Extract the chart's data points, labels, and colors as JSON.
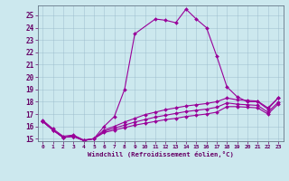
{
  "xlabel": "Windchill (Refroidissement éolien,°C)",
  "bg_color": "#cce8ee",
  "line_color": "#990099",
  "grid_color": "#99bbcc",
  "xlim": [
    -0.5,
    23.5
  ],
  "ylim": [
    14.8,
    25.8
  ],
  "yticks": [
    15,
    16,
    17,
    18,
    19,
    20,
    21,
    22,
    23,
    24,
    25
  ],
  "xticks": [
    0,
    1,
    2,
    3,
    4,
    5,
    6,
    7,
    8,
    9,
    10,
    11,
    12,
    13,
    14,
    15,
    16,
    17,
    18,
    19,
    20,
    21,
    22,
    23
  ],
  "curves": [
    {
      "x": [
        0,
        1,
        2,
        3,
        4,
        5,
        6,
        7,
        8,
        9,
        11,
        12,
        13,
        14,
        15,
        16,
        17,
        18,
        19,
        20,
        21,
        22,
        23
      ],
      "y": [
        16.5,
        15.8,
        15.2,
        15.3,
        14.9,
        15.0,
        16.0,
        16.8,
        19.0,
        23.5,
        24.7,
        24.6,
        24.4,
        25.5,
        24.7,
        24.0,
        21.7,
        19.2,
        18.4,
        18.0,
        18.0,
        17.4,
        18.3
      ]
    },
    {
      "x": [
        0,
        1,
        2,
        3,
        4,
        5,
        6,
        7,
        8,
        9,
        10,
        11,
        12,
        13,
        14,
        15,
        16,
        17,
        18,
        19,
        20,
        21,
        22,
        23
      ],
      "y": [
        16.4,
        15.7,
        15.1,
        15.2,
        14.85,
        15.0,
        15.5,
        15.7,
        15.9,
        16.1,
        16.25,
        16.4,
        16.55,
        16.65,
        16.8,
        16.9,
        17.0,
        17.15,
        17.6,
        17.6,
        17.55,
        17.5,
        17.0,
        17.8
      ]
    },
    {
      "x": [
        0,
        1,
        2,
        3,
        4,
        5,
        6,
        7,
        8,
        9,
        10,
        11,
        12,
        13,
        14,
        15,
        16,
        17,
        18,
        19,
        20,
        21,
        22,
        23
      ],
      "y": [
        16.4,
        15.7,
        15.1,
        15.2,
        14.85,
        15.0,
        15.6,
        15.85,
        16.1,
        16.35,
        16.55,
        16.75,
        16.9,
        17.05,
        17.2,
        17.3,
        17.4,
        17.55,
        17.9,
        17.8,
        17.75,
        17.7,
        17.15,
        17.95
      ]
    },
    {
      "x": [
        0,
        1,
        2,
        3,
        4,
        5,
        6,
        7,
        8,
        9,
        10,
        11,
        12,
        13,
        14,
        15,
        16,
        17,
        18,
        19,
        20,
        21,
        22,
        23
      ],
      "y": [
        16.4,
        15.7,
        15.1,
        15.2,
        14.85,
        15.0,
        15.7,
        16.0,
        16.35,
        16.65,
        16.95,
        17.15,
        17.35,
        17.5,
        17.65,
        17.75,
        17.85,
        18.0,
        18.3,
        18.15,
        18.1,
        18.05,
        17.5,
        18.3
      ]
    }
  ]
}
